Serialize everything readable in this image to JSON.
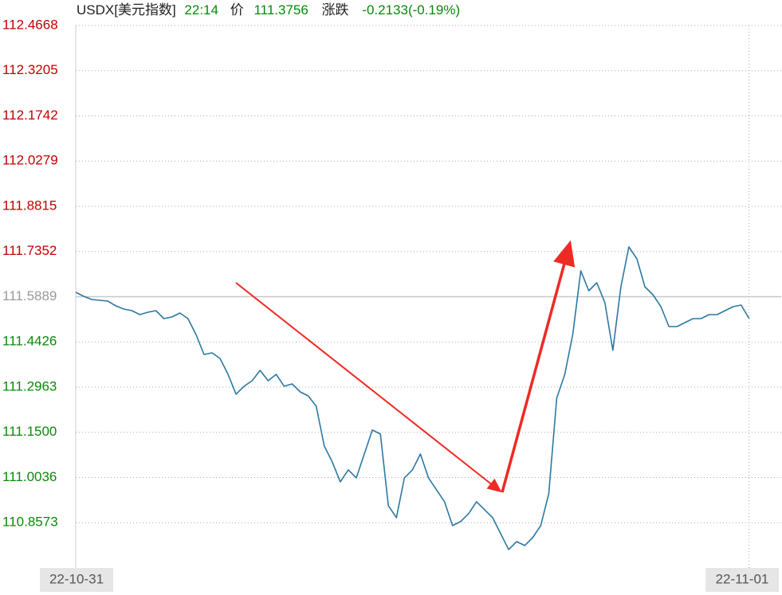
{
  "chart_data": {
    "type": "line",
    "header": {
      "symbol": "USDX[美元指数]",
      "time": "22:14",
      "price_label": "价",
      "price": "111.3756",
      "change_label": "涨跌",
      "change": "-0.2133(-0.19%)"
    },
    "categories": [
      "22-10-31",
      null,
      null,
      null,
      null,
      null,
      null,
      null,
      null,
      null,
      null,
      null,
      null,
      null,
      null,
      null,
      null,
      null,
      null,
      null,
      null,
      null,
      null,
      null,
      null,
      null,
      null,
      null,
      null,
      null,
      null,
      null,
      null,
      null,
      null,
      null,
      null,
      null,
      null,
      null,
      null,
      null,
      null,
      null,
      null,
      null,
      null,
      null,
      null,
      null,
      null,
      null,
      null,
      null,
      null,
      null,
      null,
      null,
      null,
      null,
      null,
      null,
      null,
      null,
      null,
      null,
      null,
      null,
      null,
      null,
      null,
      null,
      null,
      null,
      null,
      null,
      null,
      null,
      null,
      null,
      null,
      null,
      null,
      null,
      "22-11-01",
      null,
      null,
      null,
      null
    ],
    "series": [
      {
        "color": "#2c78a2",
        "values": [
          111.6032,
          111.5903,
          111.58,
          111.5774,
          111.5748,
          111.5593,
          111.549,
          111.5439,
          111.531,
          111.5387,
          111.5439,
          111.5181,
          111.5233,
          111.5361,
          111.5181,
          111.4665,
          111.4021,
          111.4072,
          111.3892,
          111.3376,
          111.2732,
          111.299,
          111.317,
          111.3505,
          111.317,
          111.3376,
          111.299,
          111.3067,
          111.2809,
          111.268,
          111.2345,
          111.1056,
          111.0541,
          110.9896,
          111.0283,
          111.0025,
          111.0798,
          111.1572,
          111.1443,
          110.9123,
          110.8736,
          111.0025,
          111.0283,
          111.0798,
          111.0025,
          110.9638,
          110.9252,
          110.8478,
          110.8607,
          110.8865,
          110.9252,
          110.8994,
          110.8736,
          110.822,
          110.7705,
          110.7963,
          110.7834,
          110.8091,
          110.8478,
          110.9509,
          111.2603,
          111.3376,
          111.4665,
          111.6728,
          111.6083,
          111.6341,
          111.5697,
          111.415,
          111.6212,
          111.7501,
          111.7114,
          111.6212,
          111.5954,
          111.5568,
          111.4923,
          111.4923,
          111.5052,
          111.5181,
          111.5181,
          111.531,
          111.531,
          111.5439,
          111.5568,
          111.5619,
          111.5181,
          null,
          null,
          null,
          null
        ]
      }
    ],
    "ylim": [
      110.711,
      112.4668
    ],
    "yticks": [
      {
        "value": 112.4668,
        "label": "112.4668"
      },
      {
        "value": 112.3205,
        "label": "112.3205"
      },
      {
        "value": 112.1742,
        "label": "112.1742"
      },
      {
        "value": 112.0279,
        "label": "112.0279"
      },
      {
        "value": 111.8815,
        "label": "111.8815"
      },
      {
        "value": 111.7352,
        "label": "111.7352"
      },
      {
        "value": 111.5889,
        "label": "111.5889"
      },
      {
        "value": 111.4426,
        "label": "111.4426"
      },
      {
        "value": 111.2963,
        "label": "111.2963"
      },
      {
        "value": 111.15,
        "label": "111.1500"
      },
      {
        "value": 111.0036,
        "label": "111.0036"
      },
      {
        "value": 110.8573,
        "label": "110.8573"
      }
    ],
    "reference_line": 111.5889,
    "up_color": "#c00000",
    "down_color": "#078a07",
    "ref_color": "#999999",
    "grid": true
  }
}
